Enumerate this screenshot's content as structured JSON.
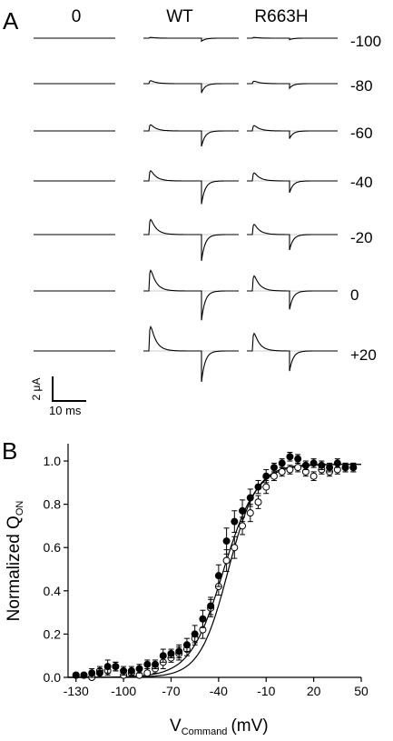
{
  "panel_a": {
    "label": "A",
    "columns": [
      "0",
      "WT",
      "R663H"
    ],
    "voltages": [
      "-100",
      "-80",
      "-60",
      "-40",
      "-20",
      "0",
      "+20"
    ],
    "scale_bar": {
      "current": "2 μA",
      "time": "10 ms"
    },
    "peak_relative": {
      "0": [
        0,
        0,
        0,
        0,
        0,
        0,
        0
      ],
      "WT": [
        0.03,
        0.12,
        0.25,
        0.42,
        0.62,
        0.85,
        1.0
      ],
      "R663H": [
        0.03,
        0.1,
        0.22,
        0.33,
        0.42,
        0.62,
        0.72
      ]
    },
    "off_relative": {
      "0": [
        0,
        0,
        0,
        0,
        0,
        0,
        0
      ],
      "WT": [
        0.1,
        0.3,
        0.5,
        0.75,
        0.85,
        0.95,
        1.0
      ],
      "R663H": [
        0.05,
        0.15,
        0.25,
        0.38,
        0.5,
        0.6,
        0.65
      ]
    }
  },
  "panel_b": {
    "label": "B",
    "ylabel": "Normalized Q",
    "ylabel_sub": "ON",
    "xlabel": "V",
    "xlabel_sub": "Command",
    "xlabel_unit": "(mV)"
  },
  "chart_data": {
    "type": "scatter",
    "x_ticks": [
      -130,
      -100,
      -70,
      -40,
      -10,
      20,
      50
    ],
    "y_ticks": [
      "0.0",
      "0.2",
      "0.4",
      "0.6",
      "0.8",
      "1.0"
    ],
    "xlim": [
      -135,
      50
    ],
    "ylim": [
      0,
      1.08
    ],
    "grid": false,
    "series": [
      {
        "marker": "filled",
        "x": [
          -130,
          -125,
          -120,
          -115,
          -110,
          -105,
          -100,
          -95,
          -90,
          -85,
          -80,
          -75,
          -70,
          -65,
          -60,
          -55,
          -50,
          -45,
          -40,
          -35,
          -30,
          -25,
          -20,
          -15,
          -10,
          -5,
          0,
          5,
          10,
          15,
          20,
          25,
          30,
          35,
          40,
          45
        ],
        "y": [
          0.01,
          0.01,
          0.02,
          0.02,
          0.05,
          0.05,
          0.03,
          0.03,
          0.04,
          0.06,
          0.06,
          0.1,
          0.11,
          0.12,
          0.15,
          0.2,
          0.27,
          0.33,
          0.47,
          0.63,
          0.72,
          0.77,
          0.83,
          0.88,
          0.93,
          0.97,
          0.99,
          1.02,
          1.01,
          0.98,
          0.99,
          0.98,
          0.97,
          0.99,
          0.97,
          0.97
        ],
        "err": [
          0.01,
          0.01,
          0.02,
          0.02,
          0.03,
          0.02,
          0.02,
          0.02,
          0.02,
          0.02,
          0.02,
          0.03,
          0.02,
          0.03,
          0.03,
          0.04,
          0.04,
          0.04,
          0.05,
          0.06,
          0.05,
          0.05,
          0.04,
          0.03,
          0.03,
          0.02,
          0.02,
          0.02,
          0.02,
          0.02,
          0.02,
          0.02,
          0.02,
          0.02,
          0.02,
          0.02
        ],
        "fit": {
          "v_half": -37,
          "k": 10.5
        }
      },
      {
        "marker": "open",
        "x": [
          -130,
          -125,
          -120,
          -115,
          -110,
          -105,
          -100,
          -95,
          -90,
          -85,
          -80,
          -75,
          -70,
          -65,
          -60,
          -55,
          -50,
          -45,
          -40,
          -35,
          -30,
          -25,
          -20,
          -15,
          -10,
          -5,
          0,
          5,
          10,
          15,
          20,
          25,
          30,
          35,
          40,
          45
        ],
        "y": [
          0.01,
          0.01,
          0.0,
          0.03,
          0.03,
          0.05,
          0.01,
          0.02,
          0.01,
          0.02,
          0.04,
          0.07,
          0.09,
          0.11,
          0.13,
          0.18,
          0.22,
          0.32,
          0.42,
          0.54,
          0.6,
          0.7,
          0.76,
          0.81,
          0.88,
          0.93,
          0.95,
          0.96,
          0.97,
          0.95,
          0.93,
          0.96,
          0.95,
          0.96,
          0.97,
          0.97
        ],
        "err": [
          0.01,
          0.01,
          0.01,
          0.02,
          0.02,
          0.02,
          0.02,
          0.02,
          0.02,
          0.02,
          0.02,
          0.03,
          0.02,
          0.03,
          0.03,
          0.03,
          0.04,
          0.04,
          0.04,
          0.05,
          0.05,
          0.04,
          0.04,
          0.03,
          0.03,
          0.02,
          0.02,
          0.02,
          0.02,
          0.02,
          0.02,
          0.02,
          0.02,
          0.02,
          0.02,
          0.02
        ],
        "fit": {
          "v_half": -34,
          "k": 9.0
        }
      }
    ]
  }
}
